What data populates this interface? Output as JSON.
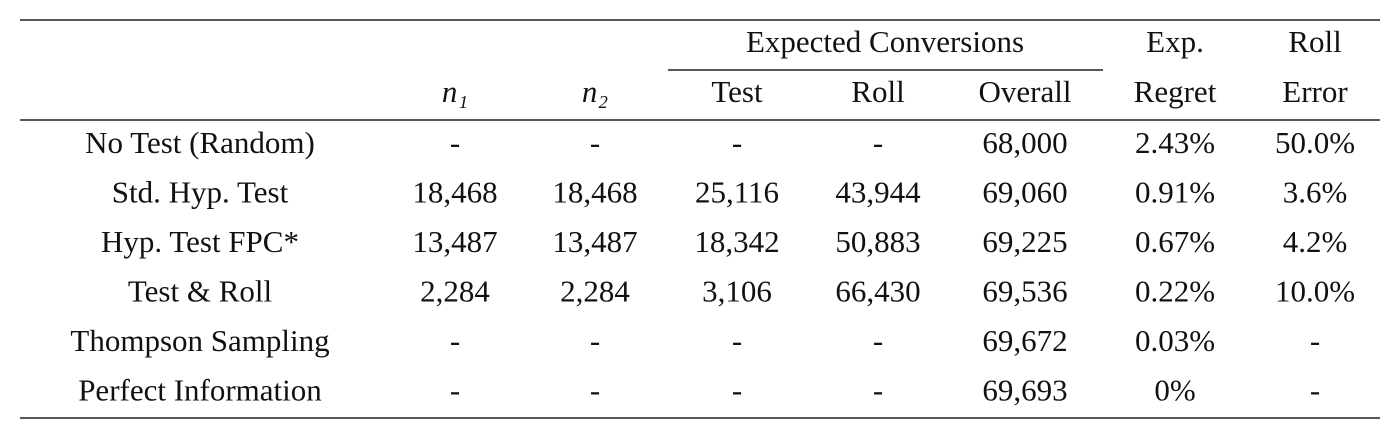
{
  "table": {
    "group_header": "Expected Conversions",
    "header_top": [
      "Exp.",
      "Roll"
    ],
    "columns": [
      "n₁",
      "n₂",
      "Test",
      "Roll",
      "Overall",
      "Regret",
      "Error"
    ],
    "rows": [
      [
        "No Test (Random)",
        "-",
        "-",
        "-",
        "-",
        "68,000",
        "2.43%",
        "50.0%"
      ],
      [
        "Std. Hyp. Test",
        "18,468",
        "18,468",
        "25,116",
        "43,944",
        "69,060",
        "0.91%",
        "3.6%"
      ],
      [
        "Hyp. Test FPC*",
        "13,487",
        "13,487",
        "18,342",
        "50,883",
        "69,225",
        "0.67%",
        "4.2%"
      ],
      [
        "Test & Roll",
        "2,284",
        "2,284",
        "3,106",
        "66,430",
        "69,536",
        "0.22%",
        "10.0%"
      ],
      [
        "Thompson Sampling",
        "-",
        "-",
        "-",
        "-",
        "69,672",
        "0.03%",
        "-"
      ],
      [
        "Perfect Information",
        "-",
        "-",
        "-",
        "-",
        "69,693",
        "0%",
        "-"
      ]
    ]
  }
}
